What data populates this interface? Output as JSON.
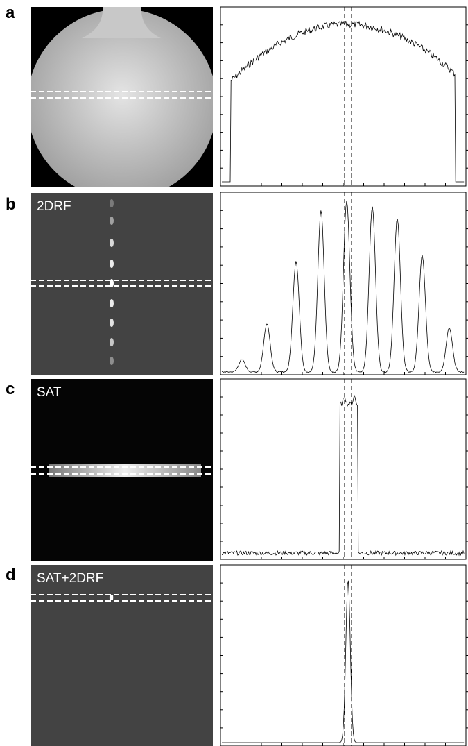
{
  "panels": [
    {
      "label": "a"
    },
    {
      "label": "b",
      "title": "2DRF"
    },
    {
      "label": "c",
      "title": "SAT"
    },
    {
      "label": "d",
      "title": "SAT+2DRF"
    }
  ]
}
